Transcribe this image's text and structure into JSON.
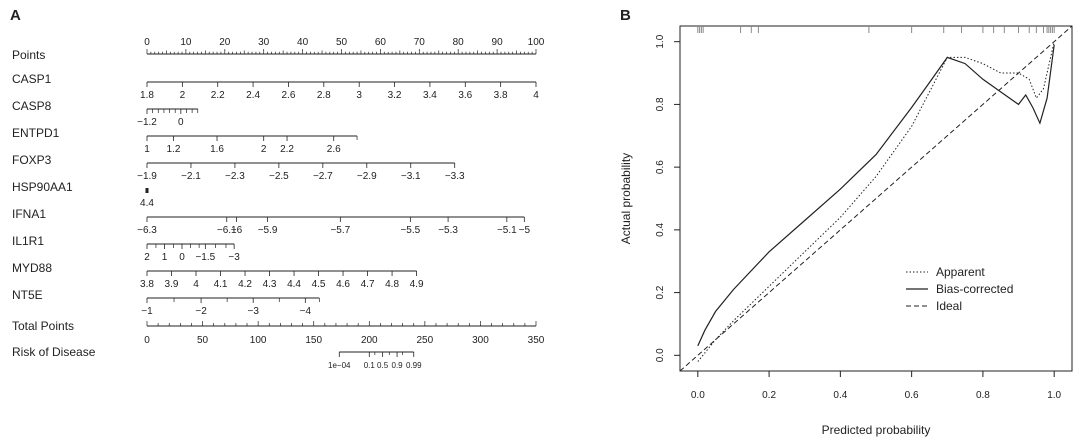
{
  "panel_a": {
    "label": "A",
    "chart_data": {
      "type": "nomogram",
      "points_scale": {
        "name": "Points",
        "ticks": [
          0,
          10,
          20,
          30,
          40,
          50,
          60,
          70,
          80,
          90,
          100
        ]
      },
      "variables": [
        {
          "name": "CASP1",
          "ticks": [
            {
              "label": "1.8",
              "points": 0
            },
            {
              "label": "2",
              "points": 9.09
            },
            {
              "label": "2.2",
              "points": 18.18
            },
            {
              "label": "2.4",
              "points": 27.27
            },
            {
              "label": "2.6",
              "points": 36.36
            },
            {
              "label": "2.8",
              "points": 45.45
            },
            {
              "label": "3",
              "points": 54.55
            },
            {
              "label": "3.2",
              "points": 63.64
            },
            {
              "label": "3.4",
              "points": 72.73
            },
            {
              "label": "3.6",
              "points": 81.82
            },
            {
              "label": "3.8",
              "points": 90.91
            },
            {
              "label": "4",
              "points": 100
            }
          ],
          "minor_ticks": []
        },
        {
          "name": "CASP8",
          "ticks": [
            {
              "label": "−1.2",
              "points": 0
            },
            {
              "label": "0",
              "points": 8.7
            }
          ],
          "minor_ticks": [
            1.45,
            2.9,
            4.35,
            5.8,
            7.25,
            10.15,
            11.6,
            13.05
          ]
        },
        {
          "name": "ENTPD1",
          "ticks": [
            {
              "label": "1",
              "points": 0
            },
            {
              "label": "1.2",
              "points": 6.8
            },
            {
              "label": "1.6",
              "points": 18
            },
            {
              "label": "2",
              "points": 30
            },
            {
              "label": "2.2",
              "points": 36
            },
            {
              "label": "2.6",
              "points": 48
            }
          ],
          "minor_ticks": [
            54
          ]
        },
        {
          "name": "FOXP3",
          "ticks": [
            {
              "label": "−1.9",
              "points": 0
            },
            {
              "label": "−2.1",
              "points": 11.3
            },
            {
              "label": "−2.3",
              "points": 22.6
            },
            {
              "label": "−2.5",
              "points": 33.9
            },
            {
              "label": "−2.7",
              "points": 45.2
            },
            {
              "label": "−2.9",
              "points": 56.5
            },
            {
              "label": "−3.1",
              "points": 67.8
            },
            {
              "label": "−3.3",
              "points": 79.1
            }
          ],
          "minor_ticks": []
        },
        {
          "name": "HSP90AA1",
          "ticks": [
            {
              "label": "4.4",
              "points": 0
            }
          ],
          "minor_ticks": []
        },
        {
          "name": "IFNA1",
          "ticks": [
            {
              "label": "−6.3",
              "points": 0
            },
            {
              "label": "−6.1",
              "points": 20.5
            },
            {
              "label": "−6",
              "points": 23
            },
            {
              "label": "−5.9",
              "points": 31
            },
            {
              "label": "−5.7",
              "points": 49.7
            },
            {
              "label": "−5.5",
              "points": 67.7
            },
            {
              "label": "−5.3",
              "points": 77.4
            },
            {
              "label": "−5.1",
              "points": 92.5
            },
            {
              "label": "−5",
              "points": 97
            }
          ],
          "minor_ticks": []
        },
        {
          "name": "IL1R1",
          "ticks": [
            {
              "label": "2",
              "points": 0
            },
            {
              "label": "1",
              "points": 4.5
            },
            {
              "label": "0",
              "points": 9
            },
            {
              "label": "−1.5",
              "points": 15
            },
            {
              "label": "−3",
              "points": 22.4
            }
          ],
          "minor_ticks": [
            2.3,
            6.8,
            11.2,
            13.4,
            17.6,
            20.3
          ]
        },
        {
          "name": "MYD88",
          "ticks": [
            {
              "label": "3.8",
              "points": 0
            },
            {
              "label": "3.9",
              "points": 6.3
            },
            {
              "label": "4",
              "points": 12.6
            },
            {
              "label": "4.1",
              "points": 18.9
            },
            {
              "label": "4.2",
              "points": 25.2
            },
            {
              "label": "4.3",
              "points": 31.5
            },
            {
              "label": "4.4",
              "points": 37.8
            },
            {
              "label": "4.5",
              "points": 44.1
            },
            {
              "label": "4.6",
              "points": 50.4
            },
            {
              "label": "4.7",
              "points": 56.7
            },
            {
              "label": "4.8",
              "points": 63
            },
            {
              "label": "4.9",
              "points": 69.3
            }
          ],
          "minor_ticks": []
        },
        {
          "name": "NT5E",
          "ticks": [
            {
              "label": "−1",
              "points": 0
            },
            {
              "label": "−2",
              "points": 13.9
            },
            {
              "label": "−3",
              "points": 27.3
            },
            {
              "label": "−4",
              "points": 40.7
            }
          ],
          "minor_ticks": [
            6.95,
            20.6,
            34,
            44.3
          ]
        }
      ],
      "total_points": {
        "name": "Total Points",
        "ticks": [
          0,
          50,
          100,
          150,
          200,
          250,
          300,
          350
        ]
      },
      "risk": {
        "name": "Risk of Disease",
        "ticks": [
          {
            "label": "1e−04",
            "total": 173
          },
          {
            "label": "0.1",
            "total": 200
          },
          {
            "label": "0.5",
            "total": 212
          },
          {
            "label": "0.9",
            "total": 225
          },
          {
            "label": "0.99",
            "total": 240
          }
        ],
        "minor_ticks": [
          205,
          218,
          230
        ]
      }
    }
  },
  "panel_b": {
    "label": "B",
    "chart_data": {
      "type": "line",
      "title": "",
      "xlabel": "Predicted probability",
      "ylabel": "Actual probability",
      "xlim": [
        -0.05,
        1.05
      ],
      "ylim": [
        -0.05,
        1.05
      ],
      "xticks": [
        0.0,
        0.2,
        0.4,
        0.6,
        0.8,
        1.0
      ],
      "yticks": [
        0.0,
        0.2,
        0.4,
        0.6,
        0.8,
        1.0
      ],
      "tick_labels": [
        "0.0",
        "0.2",
        "0.4",
        "0.6",
        "0.8",
        "1.0"
      ],
      "series": [
        {
          "name": "Apparent",
          "style": "dotted",
          "x": [
            0.0,
            0.05,
            0.1,
            0.2,
            0.3,
            0.4,
            0.5,
            0.6,
            0.65,
            0.7,
            0.75,
            0.8,
            0.85,
            0.9,
            0.93,
            0.95,
            0.97,
            0.99,
            1.0
          ],
          "y": [
            -0.02,
            0.05,
            0.11,
            0.22,
            0.33,
            0.44,
            0.57,
            0.73,
            0.84,
            0.95,
            0.95,
            0.93,
            0.9,
            0.9,
            0.88,
            0.82,
            0.85,
            0.95,
            1.0
          ]
        },
        {
          "name": "Bias-corrected",
          "style": "solid",
          "x": [
            0.0,
            0.02,
            0.05,
            0.1,
            0.2,
            0.3,
            0.4,
            0.5,
            0.6,
            0.65,
            0.7,
            0.75,
            0.8,
            0.85,
            0.9,
            0.92,
            0.94,
            0.96,
            0.98,
            1.0
          ],
          "y": [
            0.03,
            0.08,
            0.14,
            0.21,
            0.33,
            0.43,
            0.53,
            0.64,
            0.79,
            0.87,
            0.95,
            0.93,
            0.88,
            0.84,
            0.8,
            0.83,
            0.79,
            0.74,
            0.82,
            0.99
          ]
        },
        {
          "name": "Ideal",
          "style": "dashed",
          "x": [
            -0.05,
            1.05
          ],
          "y": [
            -0.05,
            1.05
          ]
        }
      ],
      "rug": [
        0.0,
        0.005,
        0.01,
        0.015,
        0.12,
        0.15,
        0.17,
        0.48,
        0.6,
        0.69,
        0.74,
        0.8,
        0.83,
        0.86,
        0.9,
        0.93,
        0.95,
        0.97,
        0.98,
        0.985,
        0.99,
        0.995,
        1.0
      ],
      "legend": {
        "position": "center-right",
        "entries": [
          "Apparent",
          "Bias-corrected",
          "Ideal"
        ]
      }
    }
  }
}
